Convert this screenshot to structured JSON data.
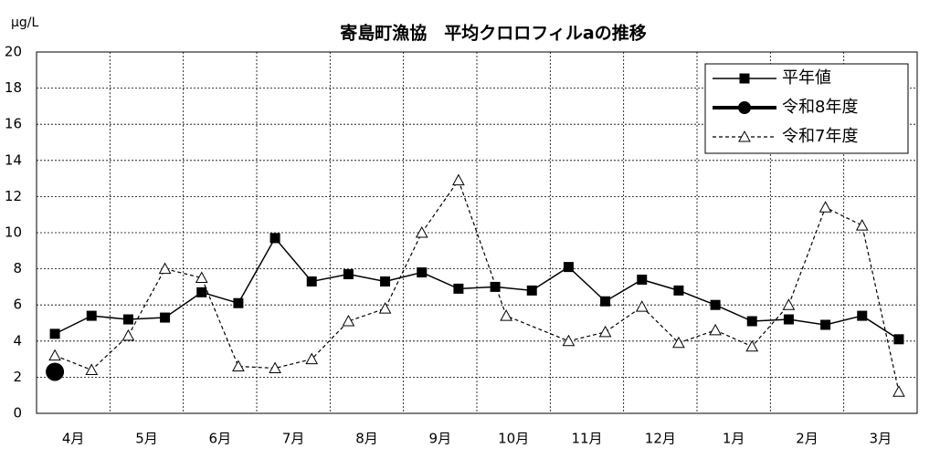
{
  "chart_data": {
    "type": "line",
    "title": "寄島町漁協　平均クロロフィルaの推移",
    "ylabel": "μg/L",
    "categories": [
      "4月",
      null,
      "5月",
      null,
      "6月",
      null,
      "7月",
      null,
      "8月",
      null,
      "9月",
      null,
      "10月",
      null,
      "11月",
      null,
      "12月",
      null,
      "1月",
      null,
      "2月",
      null,
      "3月",
      null
    ],
    "ylim": [
      0,
      20
    ],
    "yticks": [
      0,
      2,
      4,
      6,
      8,
      10,
      12,
      14,
      16,
      18,
      20
    ],
    "grid": true,
    "legend": "upper right",
    "series": [
      {
        "name": "平年値",
        "color": "#000000",
        "marker": "square",
        "line_style": "solid",
        "line_width": 1.5,
        "values": [
          4.4,
          5.4,
          5.2,
          5.3,
          6.7,
          6.1,
          9.7,
          7.3,
          7.7,
          7.3,
          7.8,
          6.9,
          7.0,
          6.8,
          8.1,
          6.2,
          7.4,
          6.8,
          6.0,
          5.1,
          5.2,
          4.9,
          5.4,
          4.1
        ]
      },
      {
        "name": "令和8年度",
        "color": "#000000",
        "marker": "circle",
        "line_style": "solid",
        "line_width": 4,
        "values": [
          2.3,
          null,
          null,
          null,
          null,
          null,
          null,
          null,
          null,
          null,
          null,
          null,
          null,
          null,
          null,
          null,
          null,
          null,
          null,
          null,
          null,
          null,
          null,
          null
        ]
      },
      {
        "name": "令和7年度",
        "color": "#000000",
        "marker": "triangle",
        "line_style": "dashed",
        "line_width": 1.2,
        "x": [
          0,
          1,
          2,
          3,
          4,
          5,
          6,
          7,
          8,
          9,
          10,
          11,
          12.3,
          14,
          15,
          16,
          17,
          18,
          19,
          20,
          21,
          22,
          23
        ],
        "values": [
          3.2,
          2.4,
          4.3,
          8.0,
          7.5,
          2.6,
          2.5,
          3.0,
          5.1,
          5.8,
          10.0,
          12.9,
          5.4,
          4.0,
          4.5,
          5.9,
          3.9,
          4.6,
          3.7,
          6.0,
          11.4,
          10.4,
          1.2
        ]
      }
    ]
  }
}
